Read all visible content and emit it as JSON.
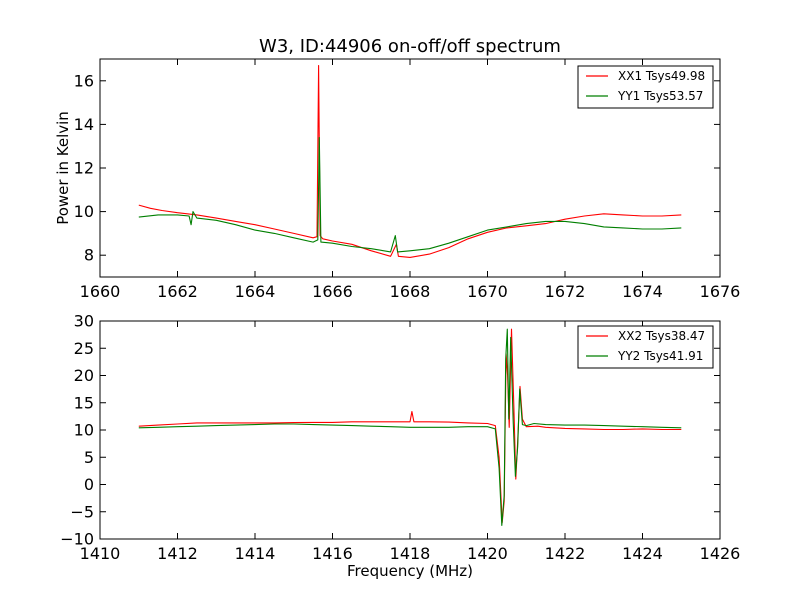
{
  "chart_data": [
    {
      "type": "line",
      "title": "W3, ID:44906 on-off/off spectrum",
      "xlabel": "",
      "ylabel": "Power in Kelvin",
      "xlim": [
        1660,
        1676
      ],
      "ylim": [
        7,
        17
      ],
      "xticks": [
        1660,
        1662,
        1664,
        1666,
        1668,
        1670,
        1672,
        1674,
        1676
      ],
      "yticks": [
        8,
        10,
        12,
        14,
        16
      ],
      "legend_position": "top-right",
      "series": [
        {
          "name": "XX1 Tsys49.98",
          "color": "#ff0000",
          "points": [
            [
              1661.0,
              10.3
            ],
            [
              1661.3,
              10.15
            ],
            [
              1661.6,
              10.05
            ],
            [
              1662.0,
              9.95
            ],
            [
              1662.5,
              9.85
            ],
            [
              1663.0,
              9.7
            ],
            [
              1663.5,
              9.55
            ],
            [
              1664.0,
              9.4
            ],
            [
              1664.5,
              9.2
            ],
            [
              1665.0,
              9.0
            ],
            [
              1665.5,
              8.8
            ],
            [
              1665.6,
              8.85
            ],
            [
              1665.64,
              16.7
            ],
            [
              1665.68,
              8.9
            ],
            [
              1665.75,
              8.75
            ],
            [
              1666.0,
              8.65
            ],
            [
              1666.5,
              8.5
            ],
            [
              1667.0,
              8.2
            ],
            [
              1667.5,
              7.95
            ],
            [
              1667.65,
              8.5
            ],
            [
              1667.7,
              7.95
            ],
            [
              1668.0,
              7.9
            ],
            [
              1668.5,
              8.05
            ],
            [
              1669.0,
              8.35
            ],
            [
              1669.5,
              8.75
            ],
            [
              1670.0,
              9.05
            ],
            [
              1670.5,
              9.25
            ],
            [
              1671.0,
              9.35
            ],
            [
              1671.5,
              9.45
            ],
            [
              1672.0,
              9.65
            ],
            [
              1672.5,
              9.8
            ],
            [
              1673.0,
              9.9
            ],
            [
              1673.5,
              9.85
            ],
            [
              1674.0,
              9.8
            ],
            [
              1674.5,
              9.8
            ],
            [
              1675.0,
              9.85
            ]
          ]
        },
        {
          "name": "YY1 Tsys53.57",
          "color": "#007f00",
          "points": [
            [
              1661.0,
              9.75
            ],
            [
              1661.5,
              9.85
            ],
            [
              1662.0,
              9.85
            ],
            [
              1662.3,
              9.8
            ],
            [
              1662.35,
              9.4
            ],
            [
              1662.4,
              10.0
            ],
            [
              1662.5,
              9.7
            ],
            [
              1663.0,
              9.6
            ],
            [
              1663.5,
              9.4
            ],
            [
              1664.0,
              9.15
            ],
            [
              1664.5,
              9.0
            ],
            [
              1665.0,
              8.8
            ],
            [
              1665.5,
              8.6
            ],
            [
              1665.62,
              8.7
            ],
            [
              1665.66,
              13.4
            ],
            [
              1665.7,
              8.6
            ],
            [
              1666.0,
              8.55
            ],
            [
              1666.5,
              8.4
            ],
            [
              1667.0,
              8.3
            ],
            [
              1667.5,
              8.15
            ],
            [
              1667.62,
              8.9
            ],
            [
              1667.68,
              8.15
            ],
            [
              1668.0,
              8.2
            ],
            [
              1668.5,
              8.3
            ],
            [
              1669.0,
              8.55
            ],
            [
              1669.5,
              8.85
            ],
            [
              1670.0,
              9.15
            ],
            [
              1670.5,
              9.3
            ],
            [
              1671.0,
              9.45
            ],
            [
              1671.5,
              9.55
            ],
            [
              1672.0,
              9.55
            ],
            [
              1672.5,
              9.45
            ],
            [
              1673.0,
              9.3
            ],
            [
              1673.5,
              9.25
            ],
            [
              1674.0,
              9.2
            ],
            [
              1674.5,
              9.2
            ],
            [
              1675.0,
              9.25
            ]
          ]
        }
      ]
    },
    {
      "type": "line",
      "title": "",
      "xlabel": "Frequency (MHz)",
      "ylabel": "",
      "xlim": [
        1410,
        1426
      ],
      "ylim": [
        -10,
        30
      ],
      "xticks": [
        1410,
        1412,
        1414,
        1416,
        1418,
        1420,
        1422,
        1424,
        1426
      ],
      "yticks": [
        -10,
        -5,
        0,
        5,
        10,
        15,
        20,
        25,
        30
      ],
      "legend_position": "top-right",
      "series": [
        {
          "name": "XX2 Tsys38.47",
          "color": "#ff0000",
          "points": [
            [
              1411.0,
              10.7
            ],
            [
              1411.5,
              10.9
            ],
            [
              1412.0,
              11.1
            ],
            [
              1412.5,
              11.3
            ],
            [
              1413.0,
              11.3
            ],
            [
              1413.5,
              11.3
            ],
            [
              1414.0,
              11.3
            ],
            [
              1414.5,
              11.3
            ],
            [
              1415.0,
              11.35
            ],
            [
              1415.5,
              11.4
            ],
            [
              1416.0,
              11.4
            ],
            [
              1416.5,
              11.5
            ],
            [
              1417.0,
              11.5
            ],
            [
              1417.5,
              11.5
            ],
            [
              1418.0,
              11.5
            ],
            [
              1418.05,
              13.4
            ],
            [
              1418.1,
              11.5
            ],
            [
              1418.5,
              11.5
            ],
            [
              1419.0,
              11.45
            ],
            [
              1419.5,
              11.3
            ],
            [
              1420.0,
              11.2
            ],
            [
              1420.2,
              10.8
            ],
            [
              1420.3,
              5.0
            ],
            [
              1420.38,
              -7.0
            ],
            [
              1420.43,
              -3.0
            ],
            [
              1420.48,
              24.0
            ],
            [
              1420.52,
              20.0
            ],
            [
              1420.56,
              10.5
            ],
            [
              1420.62,
              28.5
            ],
            [
              1420.68,
              14.0
            ],
            [
              1420.73,
              1.0
            ],
            [
              1420.78,
              8.0
            ],
            [
              1420.84,
              18.0
            ],
            [
              1420.9,
              12.0
            ],
            [
              1421.0,
              10.6
            ],
            [
              1421.3,
              10.7
            ],
            [
              1421.5,
              10.5
            ],
            [
              1422.0,
              10.3
            ],
            [
              1422.5,
              10.2
            ],
            [
              1423.0,
              10.1
            ],
            [
              1423.5,
              10.1
            ],
            [
              1424.0,
              10.2
            ],
            [
              1424.5,
              10.1
            ],
            [
              1425.0,
              10.1
            ]
          ]
        },
        {
          "name": "YY2 Tsys41.91",
          "color": "#007f00",
          "points": [
            [
              1411.0,
              10.4
            ],
            [
              1411.5,
              10.5
            ],
            [
              1412.0,
              10.6
            ],
            [
              1412.5,
              10.7
            ],
            [
              1413.0,
              10.8
            ],
            [
              1413.5,
              10.9
            ],
            [
              1414.0,
              11.0
            ],
            [
              1414.5,
              11.1
            ],
            [
              1415.0,
              11.1
            ],
            [
              1415.5,
              11.0
            ],
            [
              1416.0,
              10.9
            ],
            [
              1416.5,
              10.8
            ],
            [
              1417.0,
              10.7
            ],
            [
              1417.5,
              10.6
            ],
            [
              1418.0,
              10.5
            ],
            [
              1418.5,
              10.5
            ],
            [
              1419.0,
              10.5
            ],
            [
              1419.5,
              10.6
            ],
            [
              1420.0,
              10.6
            ],
            [
              1420.2,
              10.2
            ],
            [
              1420.3,
              3.0
            ],
            [
              1420.37,
              -7.5
            ],
            [
              1420.43,
              -2.0
            ],
            [
              1420.47,
              23.0
            ],
            [
              1420.51,
              28.5
            ],
            [
              1420.55,
              12.0
            ],
            [
              1420.6,
              27.0
            ],
            [
              1420.66,
              12.0
            ],
            [
              1420.72,
              1.5
            ],
            [
              1420.78,
              7.0
            ],
            [
              1420.83,
              17.5
            ],
            [
              1420.9,
              11.0
            ],
            [
              1421.0,
              10.8
            ],
            [
              1421.2,
              11.2
            ],
            [
              1421.5,
              11.0
            ],
            [
              1422.0,
              10.9
            ],
            [
              1422.5,
              10.9
            ],
            [
              1423.0,
              10.8
            ],
            [
              1423.5,
              10.7
            ],
            [
              1424.0,
              10.6
            ],
            [
              1424.5,
              10.5
            ],
            [
              1425.0,
              10.4
            ]
          ]
        }
      ]
    }
  ]
}
